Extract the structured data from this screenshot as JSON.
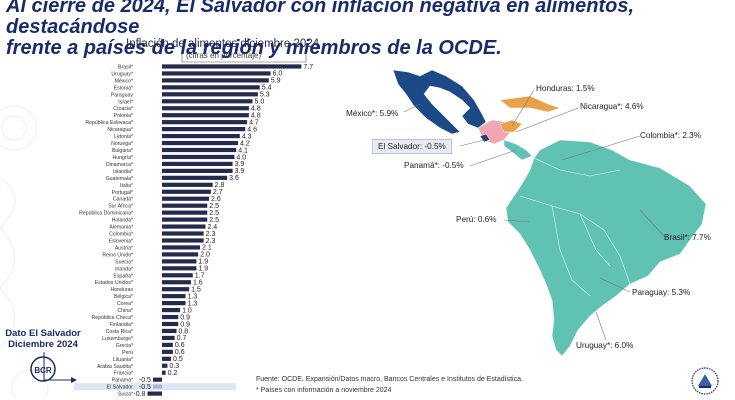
{
  "headline": {
    "line1": "Al cierre de 2024, El Salvador con inflación negativa en alimentos, destacándose",
    "line2": "frente a países de la región y miembros de la OCDE."
  },
  "chart_data": {
    "type": "bar",
    "orientation": "horizontal",
    "title": "Inflación de alimentos diciembre 2024",
    "subtitle": "(cifras en porcentaje)",
    "categories": [
      "Brasil*",
      "Uruguay*",
      "México*",
      "Estonia*",
      "Paraguay",
      "Israel*",
      "Croacia*",
      "Polonia*",
      "República Eslovaca*",
      "Nicaragua*",
      "Letonia*",
      "Noruega*",
      "Bulgaria*",
      "Hungría*",
      "Dinamarca*",
      "Islandia*",
      "Guatemala*",
      "Italia*",
      "Portugal*",
      "Canadá*",
      "Sur África*",
      "República Dominicana*",
      "Holanda*",
      "Alemania*",
      "Colombia*",
      "Eslovenia*",
      "Austria*",
      "Reino Unido*",
      "Suecia*",
      "Irlanda*",
      "España*",
      "Estados Unidos*",
      "Honduras",
      "Bélgica*",
      "Corea*",
      "China*",
      "República Checa*",
      "Finlandia*",
      "Costa Rica*",
      "Luxemburgo*",
      "Grecia*",
      "Perú",
      "Lituania*",
      "Arabia Saudita*",
      "Francia*",
      "Panamá*",
      "El Salvador",
      "Suiza*"
    ],
    "values": [
      7.7,
      6.0,
      5.9,
      5.4,
      5.3,
      5.0,
      4.8,
      4.8,
      4.7,
      4.6,
      4.3,
      4.2,
      4.1,
      4.0,
      3.9,
      3.9,
      3.6,
      2.8,
      2.7,
      2.6,
      2.5,
      2.5,
      2.5,
      2.4,
      2.3,
      2.3,
      2.1,
      2.0,
      1.9,
      1.9,
      1.7,
      1.6,
      1.5,
      1.3,
      1.3,
      1.0,
      0.9,
      0.9,
      0.8,
      0.7,
      0.6,
      0.6,
      0.5,
      0.3,
      0.2,
      -0.5,
      -0.5,
      -0.8
    ],
    "value_labels": [
      "7.7",
      "6.0",
      "5.9",
      "5.4",
      "5.3",
      "5.0",
      "4.8",
      "4.8",
      "4.7",
      "4.6",
      "4.3",
      "4.2",
      "4.1",
      "4.0",
      "3.9",
      "3.9",
      "3.6",
      "2.8",
      "2.7",
      "2.6",
      "2.5",
      "2.5",
      "2.5",
      "2.4",
      "2.3",
      "2.3",
      "2.1",
      "2.0",
      "1.9",
      "1.9",
      "1.7",
      "1.6",
      "1.5",
      "1.3",
      "1.3",
      "1.0",
      "0.9",
      "0.9",
      "0.8",
      "0.7",
      "0.6",
      "0.6",
      "0.5",
      "0.3",
      "0.2",
      "-0.5",
      "-0.5",
      "-0.8"
    ],
    "highlight_category": "El Salvador",
    "bar_color": "#252a4e",
    "highlight_bar_color": "#a8b8d8",
    "highlight_row_color": "#dfe6f3",
    "grid": false
  },
  "dato_box": {
    "line1": "Dato El Salvador",
    "line2": "Diciembre 2024"
  },
  "logo_text": "BCR",
  "map": {
    "colors": {
      "brasil_south": "#5fc2b3",
      "mexico": "#1c4a86",
      "central": "#f2a6b4",
      "honduras": "#e9a24b",
      "nicaragua": "#e9a24b",
      "el_salvador": "#2c3e78"
    },
    "labels": [
      {
        "id": "honduras",
        "text": "Honduras: 1.5%"
      },
      {
        "id": "mexico",
        "text": "México*: 5.9%"
      },
      {
        "id": "nicaragua",
        "text": "Nicaragua*: 4.6%"
      },
      {
        "id": "el_salvador",
        "text": "El Salvador: -0.5%"
      },
      {
        "id": "colombia",
        "text": "Colombia*: 2.3%"
      },
      {
        "id": "panama",
        "text": "Panamá*: -0.5%"
      },
      {
        "id": "peru",
        "text": "Perú: 0.6%"
      },
      {
        "id": "brasil",
        "text": "Brasil*: 7.7%"
      },
      {
        "id": "paraguay",
        "text": "Paraguay: 5.3%"
      },
      {
        "id": "uruguay",
        "text": "Uruguay*: 6.0%"
      }
    ]
  },
  "source": {
    "line1": "Fuente: OCDE, Expansión/Datos macro, Bancos Centrales e Institutos de Estadística.",
    "line2": "* Países con información a noviembre 2024"
  }
}
